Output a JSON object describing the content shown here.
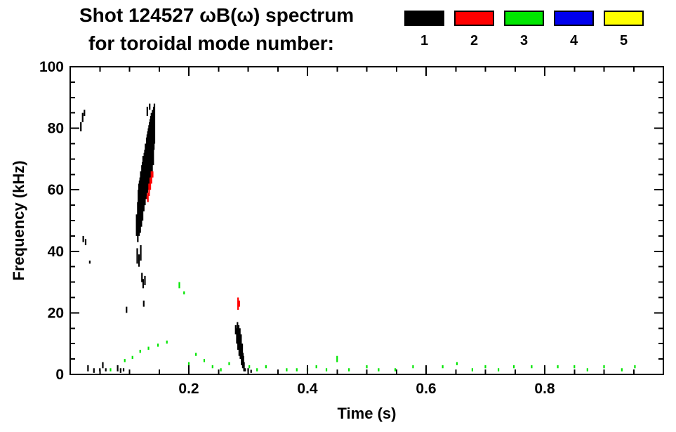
{
  "header": {
    "title_line1": "Shot 124527 ωB(ω) spectrum",
    "title_line2": "for toroidal mode number:",
    "legend": [
      {
        "label": "1",
        "color": "#000000"
      },
      {
        "label": "2",
        "color": "#ff0000"
      },
      {
        "label": "3",
        "color": "#00e600"
      },
      {
        "label": "4",
        "color": "#0000ee"
      },
      {
        "label": "5",
        "color": "#ffff00"
      }
    ]
  },
  "chart_data": {
    "type": "scatter",
    "title": "Shot 124527 ωB(ω) spectrum for toroidal mode number: 1 2 3 4 5",
    "xlabel": "Time (s)",
    "ylabel": "Frequency (kHz)",
    "xlim": [
      0,
      1.0
    ],
    "ylim": [
      0,
      100
    ],
    "x_major_ticks": [
      0.2,
      0.4,
      0.6,
      0.8
    ],
    "x_tick_labels": [
      "0.2",
      "0.4",
      "0.6",
      "0.8"
    ],
    "x_minor_step": 0.05,
    "y_major_ticks": [
      0,
      20,
      40,
      60,
      80,
      100
    ],
    "y_tick_labels": [
      "0",
      "20",
      "40",
      "60",
      "80",
      "100"
    ],
    "y_minor_step": 5,
    "grid": false,
    "legend_position": "top-right",
    "series": [
      {
        "name": "mode 1",
        "color": "#000000",
        "streaks": [
          [
            0.018,
            79,
            82
          ],
          [
            0.021,
            82,
            85
          ],
          [
            0.024,
            84,
            86
          ],
          [
            0.022,
            43,
            45
          ],
          [
            0.026,
            42,
            44
          ],
          [
            0.033,
            36,
            37
          ],
          [
            0.03,
            1,
            3
          ],
          [
            0.04,
            0.5,
            2
          ],
          [
            0.05,
            1,
            2
          ],
          [
            0.055,
            2,
            4
          ],
          [
            0.06,
            1,
            2
          ],
          [
            0.08,
            1,
            3
          ],
          [
            0.085,
            0.5,
            2
          ],
          [
            0.09,
            1,
            2
          ],
          [
            0.095,
            20,
            22
          ],
          [
            0.112,
            45,
            52
          ],
          [
            0.114,
            43,
            56
          ],
          [
            0.115,
            48,
            60
          ],
          [
            0.116,
            45,
            62
          ],
          [
            0.117,
            50,
            63
          ],
          [
            0.118,
            46,
            64
          ],
          [
            0.119,
            52,
            66
          ],
          [
            0.12,
            48,
            65
          ],
          [
            0.121,
            54,
            68
          ],
          [
            0.122,
            50,
            69
          ],
          [
            0.123,
            56,
            71
          ],
          [
            0.124,
            53,
            70
          ],
          [
            0.125,
            58,
            72
          ],
          [
            0.126,
            55,
            73
          ],
          [
            0.127,
            60,
            75
          ],
          [
            0.128,
            57,
            74
          ],
          [
            0.129,
            61,
            77
          ],
          [
            0.13,
            59,
            78
          ],
          [
            0.131,
            63,
            79
          ],
          [
            0.132,
            60,
            80
          ],
          [
            0.133,
            65,
            81
          ],
          [
            0.134,
            62,
            82
          ],
          [
            0.135,
            67,
            83
          ],
          [
            0.136,
            64,
            84
          ],
          [
            0.137,
            69,
            85
          ],
          [
            0.138,
            66,
            84
          ],
          [
            0.139,
            71,
            86
          ],
          [
            0.14,
            68,
            85
          ],
          [
            0.141,
            73,
            87
          ],
          [
            0.142,
            75,
            88
          ],
          [
            0.113,
            36,
            41
          ],
          [
            0.116,
            35,
            39
          ],
          [
            0.119,
            37,
            42
          ],
          [
            0.121,
            30,
            33
          ],
          [
            0.123,
            28,
            31
          ],
          [
            0.126,
            29,
            32
          ],
          [
            0.124,
            22,
            24
          ],
          [
            0.13,
            84,
            87
          ],
          [
            0.134,
            86,
            88
          ],
          [
            0.279,
            13,
            16
          ],
          [
            0.281,
            10,
            15
          ],
          [
            0.282,
            12,
            17
          ],
          [
            0.283,
            8,
            14
          ],
          [
            0.284,
            11,
            16
          ],
          [
            0.285,
            6,
            12
          ],
          [
            0.286,
            9,
            15
          ],
          [
            0.287,
            5,
            11
          ],
          [
            0.288,
            7,
            13
          ],
          [
            0.289,
            3,
            9
          ],
          [
            0.29,
            5,
            10
          ],
          [
            0.291,
            2,
            7
          ],
          [
            0.292,
            4,
            6
          ],
          [
            0.293,
            1,
            4
          ],
          [
            0.295,
            1,
            2
          ],
          [
            0.3,
            1,
            2
          ],
          [
            0.305,
            0.5,
            1.5
          ]
        ]
      },
      {
        "name": "mode 2",
        "color": "#ff0000",
        "streaks": [
          [
            0.13,
            57,
            58
          ],
          [
            0.131,
            56,
            59
          ],
          [
            0.133,
            58,
            62
          ],
          [
            0.135,
            60,
            64
          ],
          [
            0.137,
            62,
            66
          ],
          [
            0.139,
            64,
            66
          ],
          [
            0.283,
            21,
            25
          ],
          [
            0.285,
            22,
            24
          ]
        ]
      },
      {
        "name": "mode 3",
        "color": "#00e600",
        "streaks": [
          [
            0.068,
            1,
            2
          ],
          [
            0.092,
            4,
            5
          ],
          [
            0.105,
            5,
            6
          ],
          [
            0.118,
            7,
            8
          ],
          [
            0.132,
            8,
            9
          ],
          [
            0.148,
            9,
            10
          ],
          [
            0.163,
            10,
            11
          ],
          [
            0.184,
            28,
            30
          ],
          [
            0.192,
            26,
            27
          ],
          [
            0.2,
            3,
            4
          ],
          [
            0.212,
            6,
            7
          ],
          [
            0.226,
            4,
            5
          ],
          [
            0.24,
            2,
            3
          ],
          [
            0.254,
            1,
            2
          ],
          [
            0.268,
            3,
            4
          ],
          [
            0.302,
            2,
            3
          ],
          [
            0.315,
            1,
            2
          ],
          [
            0.33,
            2,
            3
          ],
          [
            0.365,
            1,
            2
          ],
          [
            0.382,
            1,
            2
          ],
          [
            0.4,
            1,
            2
          ],
          [
            0.415,
            2,
            3
          ],
          [
            0.432,
            1,
            2
          ],
          [
            0.45,
            4,
            6
          ],
          [
            0.47,
            1,
            2
          ],
          [
            0.5,
            2,
            3
          ],
          [
            0.52,
            1,
            2
          ],
          [
            0.548,
            1,
            2
          ],
          [
            0.578,
            2,
            3
          ],
          [
            0.6,
            1,
            2
          ],
          [
            0.628,
            2,
            3
          ],
          [
            0.652,
            3,
            4
          ],
          [
            0.678,
            1,
            2
          ],
          [
            0.7,
            2,
            3
          ],
          [
            0.722,
            1,
            2
          ],
          [
            0.748,
            2,
            3
          ],
          [
            0.778,
            2,
            3
          ],
          [
            0.8,
            1,
            2
          ],
          [
            0.822,
            2,
            3
          ],
          [
            0.85,
            2,
            3
          ],
          [
            0.872,
            1,
            2
          ],
          [
            0.9,
            2,
            3
          ],
          [
            0.93,
            1,
            2
          ],
          [
            0.952,
            2,
            3
          ]
        ]
      },
      {
        "name": "mode 4",
        "color": "#0000ee",
        "streaks": []
      },
      {
        "name": "mode 5",
        "color": "#ffff00",
        "streaks": []
      }
    ]
  }
}
